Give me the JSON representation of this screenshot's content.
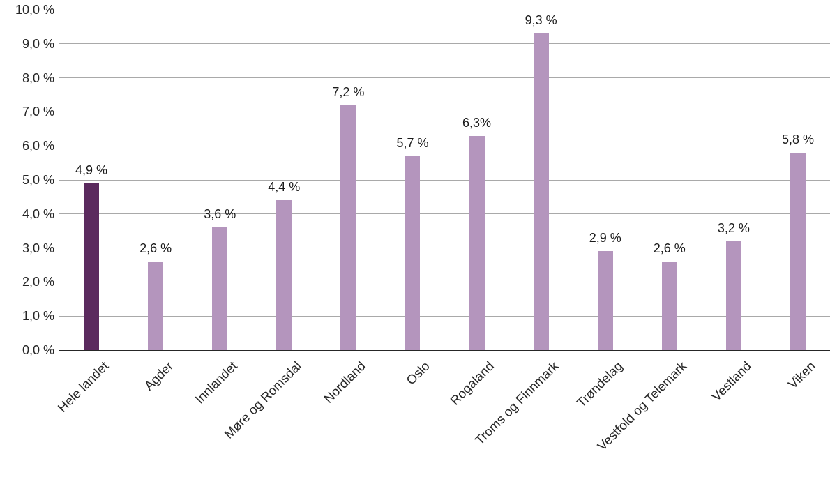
{
  "chart_data": {
    "type": "bar",
    "title": "",
    "xlabel": "",
    "ylabel": "",
    "categories": [
      "Hele landet",
      "Agder",
      "Innlandet",
      "Møre og Romsdal",
      "Nordland",
      "Oslo",
      "Rogaland",
      "Troms og Finnmark",
      "Trøndelag",
      "Vestfold og Telemark",
      "Vestland",
      "Viken"
    ],
    "values": [
      4.9,
      2.6,
      3.6,
      4.4,
      7.2,
      5.7,
      6.3,
      9.3,
      2.9,
      2.6,
      3.2,
      5.8
    ],
    "value_labels": [
      "4,9 %",
      "2,6 %",
      "3,6 %",
      "4,4 %",
      "7,2 %",
      "5,7 %",
      "6,3%",
      "9,3 %",
      "2,9 %",
      "2,6 %",
      "3,2 %",
      "5,8 %"
    ],
    "y_tick_labels": [
      "10,0 %",
      "9,0 %",
      "8,0 %",
      "7,0 %",
      "6,0 %",
      "5,0 %",
      "4,0 %",
      "3,0 %",
      "2,0 %",
      "1,0 %",
      "0,0 %"
    ],
    "y_tick_values": [
      10,
      9,
      8,
      7,
      6,
      5,
      4,
      3,
      2,
      1,
      0
    ],
    "ylim": [
      0,
      10
    ],
    "grid": true,
    "legend": "none",
    "bar_color": "#b495bd",
    "highlight_color": "#5b2a5e",
    "highlight_index": 0,
    "text_color": "#262626",
    "gridline_color": "#a9a9a9",
    "axis_color": "#262626"
  }
}
